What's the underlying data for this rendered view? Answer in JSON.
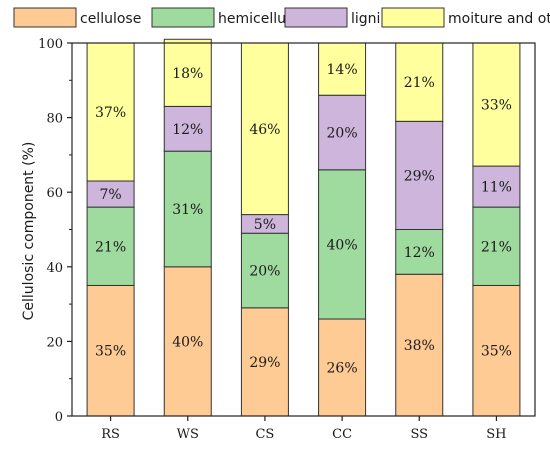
{
  "chart_data": {
    "type": "bar",
    "stacked": true,
    "categories": [
      "RS",
      "WS",
      "CS",
      "CC",
      "SS",
      "SH"
    ],
    "series": [
      {
        "name": "cellulose",
        "color": "#FECB94",
        "values": [
          35,
          40,
          29,
          26,
          38,
          35
        ],
        "labels": [
          "35%",
          "40%",
          "29%",
          "26%",
          "38%",
          "35%"
        ]
      },
      {
        "name": "hemicellulose",
        "color": "#9FDA9F",
        "values": [
          21,
          31,
          20,
          40,
          12,
          21
        ],
        "labels": [
          "21%",
          "31%",
          "20%",
          "40%",
          "12%",
          "21%"
        ]
      },
      {
        "name": "lignin",
        "color": "#CDB5DC",
        "values": [
          7,
          12,
          5,
          20,
          29,
          11
        ],
        "labels": [
          "7%",
          "12%",
          "5%",
          "20%",
          "29%",
          "11%"
        ]
      },
      {
        "name": "moiture and others",
        "color": "#FFFF9D",
        "values": [
          37,
          18,
          46,
          14,
          21,
          33
        ],
        "labels": [
          "37%",
          "18%",
          "46%",
          "14%",
          "21%",
          "33%"
        ]
      }
    ],
    "ylabel": "Cellulosic component (%)",
    "xlabel": "",
    "ylim": [
      0,
      100
    ],
    "yticks": [
      "0",
      "20",
      "40",
      "60",
      "80",
      "100"
    ],
    "legend_position": "top",
    "grid": false
  }
}
